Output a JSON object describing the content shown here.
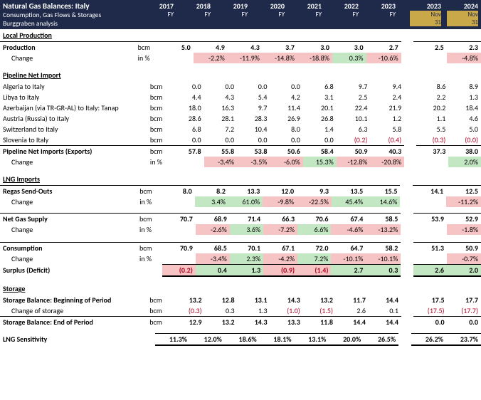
{
  "header": {
    "title": "Natural Gas Balances: Italy",
    "subtitle": "Consumption, Gas Flows & Storages",
    "source": "Burggraben analysis"
  },
  "cols": [
    {
      "year": "2017",
      "per": "FY",
      "day": ""
    },
    {
      "year": "2018",
      "per": "FY",
      "day": ""
    },
    {
      "year": "2019",
      "per": "FY",
      "day": ""
    },
    {
      "year": "2020",
      "per": "FY",
      "day": ""
    },
    {
      "year": "2021",
      "per": "FY",
      "day": ""
    },
    {
      "year": "2022",
      "per": "FY",
      "day": ""
    },
    {
      "year": "2023",
      "per": "FY",
      "day": ""
    },
    null,
    {
      "year": "2023",
      "per": "Nov",
      "day": "31",
      "gold": true
    },
    {
      "year": "2024",
      "per": "Nov",
      "day": "31",
      "gold": true
    }
  ],
  "sections": [
    {
      "head": "Local Production",
      "rows": [
        {
          "label": "Production",
          "unit": "bcm",
          "bold": true,
          "topline": true,
          "vals": [
            "5.0",
            "4.9",
            "4.3",
            "3.7",
            "3.0",
            "3.0",
            "2.7",
            null,
            "2.5",
            "2.3"
          ]
        },
        {
          "label": "Change",
          "unit": "in %",
          "indent": true,
          "vals": [
            "",
            "-2.2%",
            "-11.9%",
            "-14.8%",
            "-18.8%",
            "0.3%",
            "-10.6%",
            null,
            "",
            "-4.8%"
          ],
          "hl": [
            "",
            "red",
            "red",
            "red",
            "red",
            "grn",
            "red",
            "",
            "",
            "red"
          ]
        }
      ]
    },
    {
      "head": "Pipeline Net Import",
      "rows": [
        {
          "label": "Algeria to Italy",
          "unit": "bcm",
          "vals": [
            "0.0",
            "0.0",
            "0.0",
            "0.0",
            "6.8",
            "9.7",
            "9.4",
            null,
            "8.6",
            "8.9"
          ]
        },
        {
          "label": "Libya to Italy",
          "unit": "bcm",
          "vals": [
            "4.4",
            "4.3",
            "5.4",
            "4.2",
            "3.1",
            "2.5",
            "2.4",
            null,
            "2.2",
            "1.3"
          ]
        },
        {
          "label": "Azerbaijan (via TR-GR-AL) to Italy: Tanap",
          "unit": "bcm",
          "vals": [
            "18.0",
            "16.3",
            "9.7",
            "11.4",
            "20.1",
            "22.4",
            "21.9",
            null,
            "20.2",
            "18.4"
          ]
        },
        {
          "label": "Austria (Russia) to Italy",
          "unit": "bcm",
          "vals": [
            "28.6",
            "28.1",
            "28.3",
            "26.9",
            "26.8",
            "10.1",
            "1.2",
            null,
            "1.1",
            "4.6"
          ]
        },
        {
          "label": "Switzerland to Italy",
          "unit": "bcm",
          "vals": [
            "6.8",
            "7.2",
            "10.4",
            "8.0",
            "1.4",
            "6.3",
            "5.8",
            null,
            "5.5",
            "5.0"
          ]
        },
        {
          "label": "Slovenia to Italy",
          "unit": "bcm",
          "vals": [
            "0.0",
            "0.0",
            "0.0",
            "0.0",
            "0.0",
            "(0.2)",
            "(0.4)",
            null,
            "(0.3)",
            "(0.0)"
          ],
          "negflags": [
            "",
            "",
            "",
            "",
            "",
            "1",
            "1",
            "",
            "1",
            "1"
          ]
        },
        {
          "label": "Pipeline Net Imports (Exports)",
          "unit": "bcm",
          "bold": true,
          "topline": true,
          "vals": [
            "57.8",
            "55.8",
            "53.8",
            "50.6",
            "58.4",
            "50.9",
            "40.3",
            null,
            "37.3",
            "38.0"
          ]
        },
        {
          "label": "Change",
          "unit": "in %",
          "indent": true,
          "vals": [
            "",
            "-3.4%",
            "-3.5%",
            "-6.0%",
            "15.3%",
            "-12.8%",
            "-20.8%",
            null,
            "",
            "2.0%"
          ],
          "hl": [
            "",
            "red",
            "red",
            "red",
            "grn",
            "red",
            "red",
            "",
            "",
            "grn"
          ]
        }
      ]
    },
    {
      "head": "LNG Imports",
      "rows": [
        {
          "label": "Regas Send-Outs",
          "unit": "bcm",
          "bold": true,
          "topline": true,
          "vals": [
            "8.0",
            "8.2",
            "13.3",
            "12.0",
            "9.3",
            "13.5",
            "15.5",
            null,
            "14.1",
            "12.5"
          ]
        },
        {
          "label": "Change",
          "unit": "in %",
          "indent": true,
          "vals": [
            "",
            "3.4%",
            "61.0%",
            "-9.8%",
            "-22.5%",
            "45.4%",
            "14.6%",
            null,
            "",
            "-11.2%"
          ],
          "hl": [
            "",
            "grn",
            "grn",
            "red",
            "red",
            "grn",
            "grn",
            "",
            "",
            "red"
          ]
        }
      ]
    },
    {
      "head": "",
      "rows": [
        {
          "label": "Net Gas Supply",
          "unit": "bcm",
          "bold": true,
          "topline": true,
          "vals": [
            "70.7",
            "68.9",
            "71.4",
            "66.3",
            "70.6",
            "67.4",
            "58.5",
            null,
            "53.9",
            "52.9"
          ]
        },
        {
          "label": "Change",
          "unit": "in %",
          "indent": true,
          "vals": [
            "",
            "-2.6%",
            "3.6%",
            "-7.2%",
            "6.6%",
            "-4.6%",
            "-13.2%",
            null,
            "",
            "-1.8%"
          ],
          "hl": [
            "",
            "red",
            "grn",
            "red",
            "grn",
            "red",
            "red",
            "",
            "",
            "red"
          ]
        },
        {
          "spacer": true
        },
        {
          "label": "Consumption",
          "unit": "bcm",
          "bold": true,
          "topline": true,
          "vals": [
            "70.9",
            "68.5",
            "70.1",
            "67.1",
            "72.0",
            "64.7",
            "58.2",
            null,
            "51.3",
            "50.9"
          ]
        },
        {
          "label": "Change",
          "unit": "in %",
          "indent": true,
          "vals": [
            "",
            "-3.4%",
            "2.3%",
            "-4.2%",
            "7.2%",
            "-10.1%",
            "-10.1%",
            null,
            "",
            "-0.7%"
          ],
          "hl": [
            "",
            "red",
            "grn",
            "red",
            "grn",
            "red",
            "red",
            "",
            "",
            "red"
          ]
        },
        {
          "label": "Surplus (Deficit)",
          "unit": "",
          "bold": true,
          "dbl": true,
          "vals": [
            "(0.2)",
            "0.4",
            "1.3",
            "(0.9)",
            "(1.4)",
            "2.7",
            "0.3",
            null,
            "2.6",
            "2.0"
          ],
          "hl": [
            "red",
            "grn",
            "grn",
            "red",
            "red",
            "grn",
            "grn",
            "",
            "grn",
            "grn"
          ],
          "negflags": [
            "1",
            "",
            "",
            "1",
            "1",
            "",
            "",
            "",
            "",
            ""
          ]
        }
      ]
    },
    {
      "head": "Storage",
      "rows": [
        {
          "label": "Storage Balance: Beginning of Period",
          "unit": "bcm",
          "bold": true,
          "vals": [
            "13.2",
            "12.8",
            "13.1",
            "14.3",
            "13.2",
            "11.7",
            "14.4",
            null,
            "17.5",
            "17.7"
          ]
        },
        {
          "label": "Change of storage",
          "unit": "bcm",
          "indent": true,
          "vals": [
            "(0.3)",
            "0.3",
            "1.3",
            "(1.0)",
            "(1.5)",
            "2.6",
            "0.1",
            null,
            "(17.5)",
            "(17.7)"
          ],
          "negflags": [
            "1",
            "",
            "",
            "1",
            "1",
            "",
            "",
            "",
            "1",
            "1"
          ]
        },
        {
          "label": "Storage Balance: End of Period",
          "unit": "bcm",
          "bold": true,
          "topline": true,
          "vals": [
            "12.9",
            "13.2",
            "14.3",
            "13.3",
            "11.8",
            "14.4",
            "14.4",
            null,
            "0.0",
            "0.0"
          ]
        }
      ]
    },
    {
      "head": "",
      "rows": [
        {
          "label": "LNG Sensitivity",
          "unit": "",
          "bold": true,
          "dbl": true,
          "vals": [
            "11.3%",
            "12.0%",
            "18.6%",
            "18.1%",
            "13.1%",
            "20.0%",
            "26.5%",
            null,
            "26.2%",
            "23.7%"
          ]
        }
      ]
    }
  ]
}
